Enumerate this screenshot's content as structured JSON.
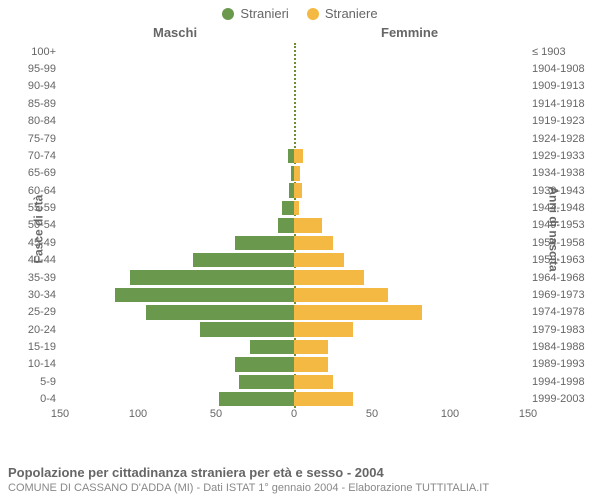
{
  "legend": {
    "male": {
      "label": "Stranieri",
      "color": "#6a994e"
    },
    "female": {
      "label": "Straniere",
      "color": "#f4b942"
    }
  },
  "headers": {
    "left": "Maschi",
    "right": "Femmine"
  },
  "yaxis": {
    "left_title": "Fasce di età",
    "right_title": "Anni di nascita"
  },
  "xaxis": {
    "max": 150,
    "ticks_left": [
      150,
      100,
      50,
      0
    ],
    "ticks_right": [
      0,
      50,
      100,
      150
    ]
  },
  "colors": {
    "background": "#ffffff",
    "text": "#666666",
    "center_line": "#6b8f32"
  },
  "rows": [
    {
      "age": "100+",
      "birth": "≤ 1903",
      "m": 0,
      "f": 0
    },
    {
      "age": "95-99",
      "birth": "1904-1908",
      "m": 0,
      "f": 0
    },
    {
      "age": "90-94",
      "birth": "1909-1913",
      "m": 0,
      "f": 0
    },
    {
      "age": "85-89",
      "birth": "1914-1918",
      "m": 0,
      "f": 0
    },
    {
      "age": "80-84",
      "birth": "1919-1923",
      "m": 0,
      "f": 0
    },
    {
      "age": "75-79",
      "birth": "1924-1928",
      "m": 0,
      "f": 0
    },
    {
      "age": "70-74",
      "birth": "1929-1933",
      "m": 4,
      "f": 6
    },
    {
      "age": "65-69",
      "birth": "1934-1938",
      "m": 2,
      "f": 4
    },
    {
      "age": "60-64",
      "birth": "1939-1943",
      "m": 3,
      "f": 5
    },
    {
      "age": "55-59",
      "birth": "1944-1948",
      "m": 8,
      "f": 3
    },
    {
      "age": "50-54",
      "birth": "1949-1953",
      "m": 10,
      "f": 18
    },
    {
      "age": "45-49",
      "birth": "1954-1958",
      "m": 38,
      "f": 25
    },
    {
      "age": "40-44",
      "birth": "1959-1963",
      "m": 65,
      "f": 32
    },
    {
      "age": "35-39",
      "birth": "1964-1968",
      "m": 105,
      "f": 45
    },
    {
      "age": "30-34",
      "birth": "1969-1973",
      "m": 115,
      "f": 60
    },
    {
      "age": "25-29",
      "birth": "1974-1978",
      "m": 95,
      "f": 82
    },
    {
      "age": "20-24",
      "birth": "1979-1983",
      "m": 60,
      "f": 38
    },
    {
      "age": "15-19",
      "birth": "1984-1988",
      "m": 28,
      "f": 22
    },
    {
      "age": "10-14",
      "birth": "1989-1993",
      "m": 38,
      "f": 22
    },
    {
      "age": "5-9",
      "birth": "1994-1998",
      "m": 35,
      "f": 25
    },
    {
      "age": "0-4",
      "birth": "1999-2003",
      "m": 48,
      "f": 38
    }
  ],
  "caption": {
    "title": "Popolazione per cittadinanza straniera per età e sesso - 2004",
    "subtitle": "COMUNE DI CASSANO D'ADDA (MI) - Dati ISTAT 1° gennaio 2004 - Elaborazione TUTTITALIA.IT"
  }
}
